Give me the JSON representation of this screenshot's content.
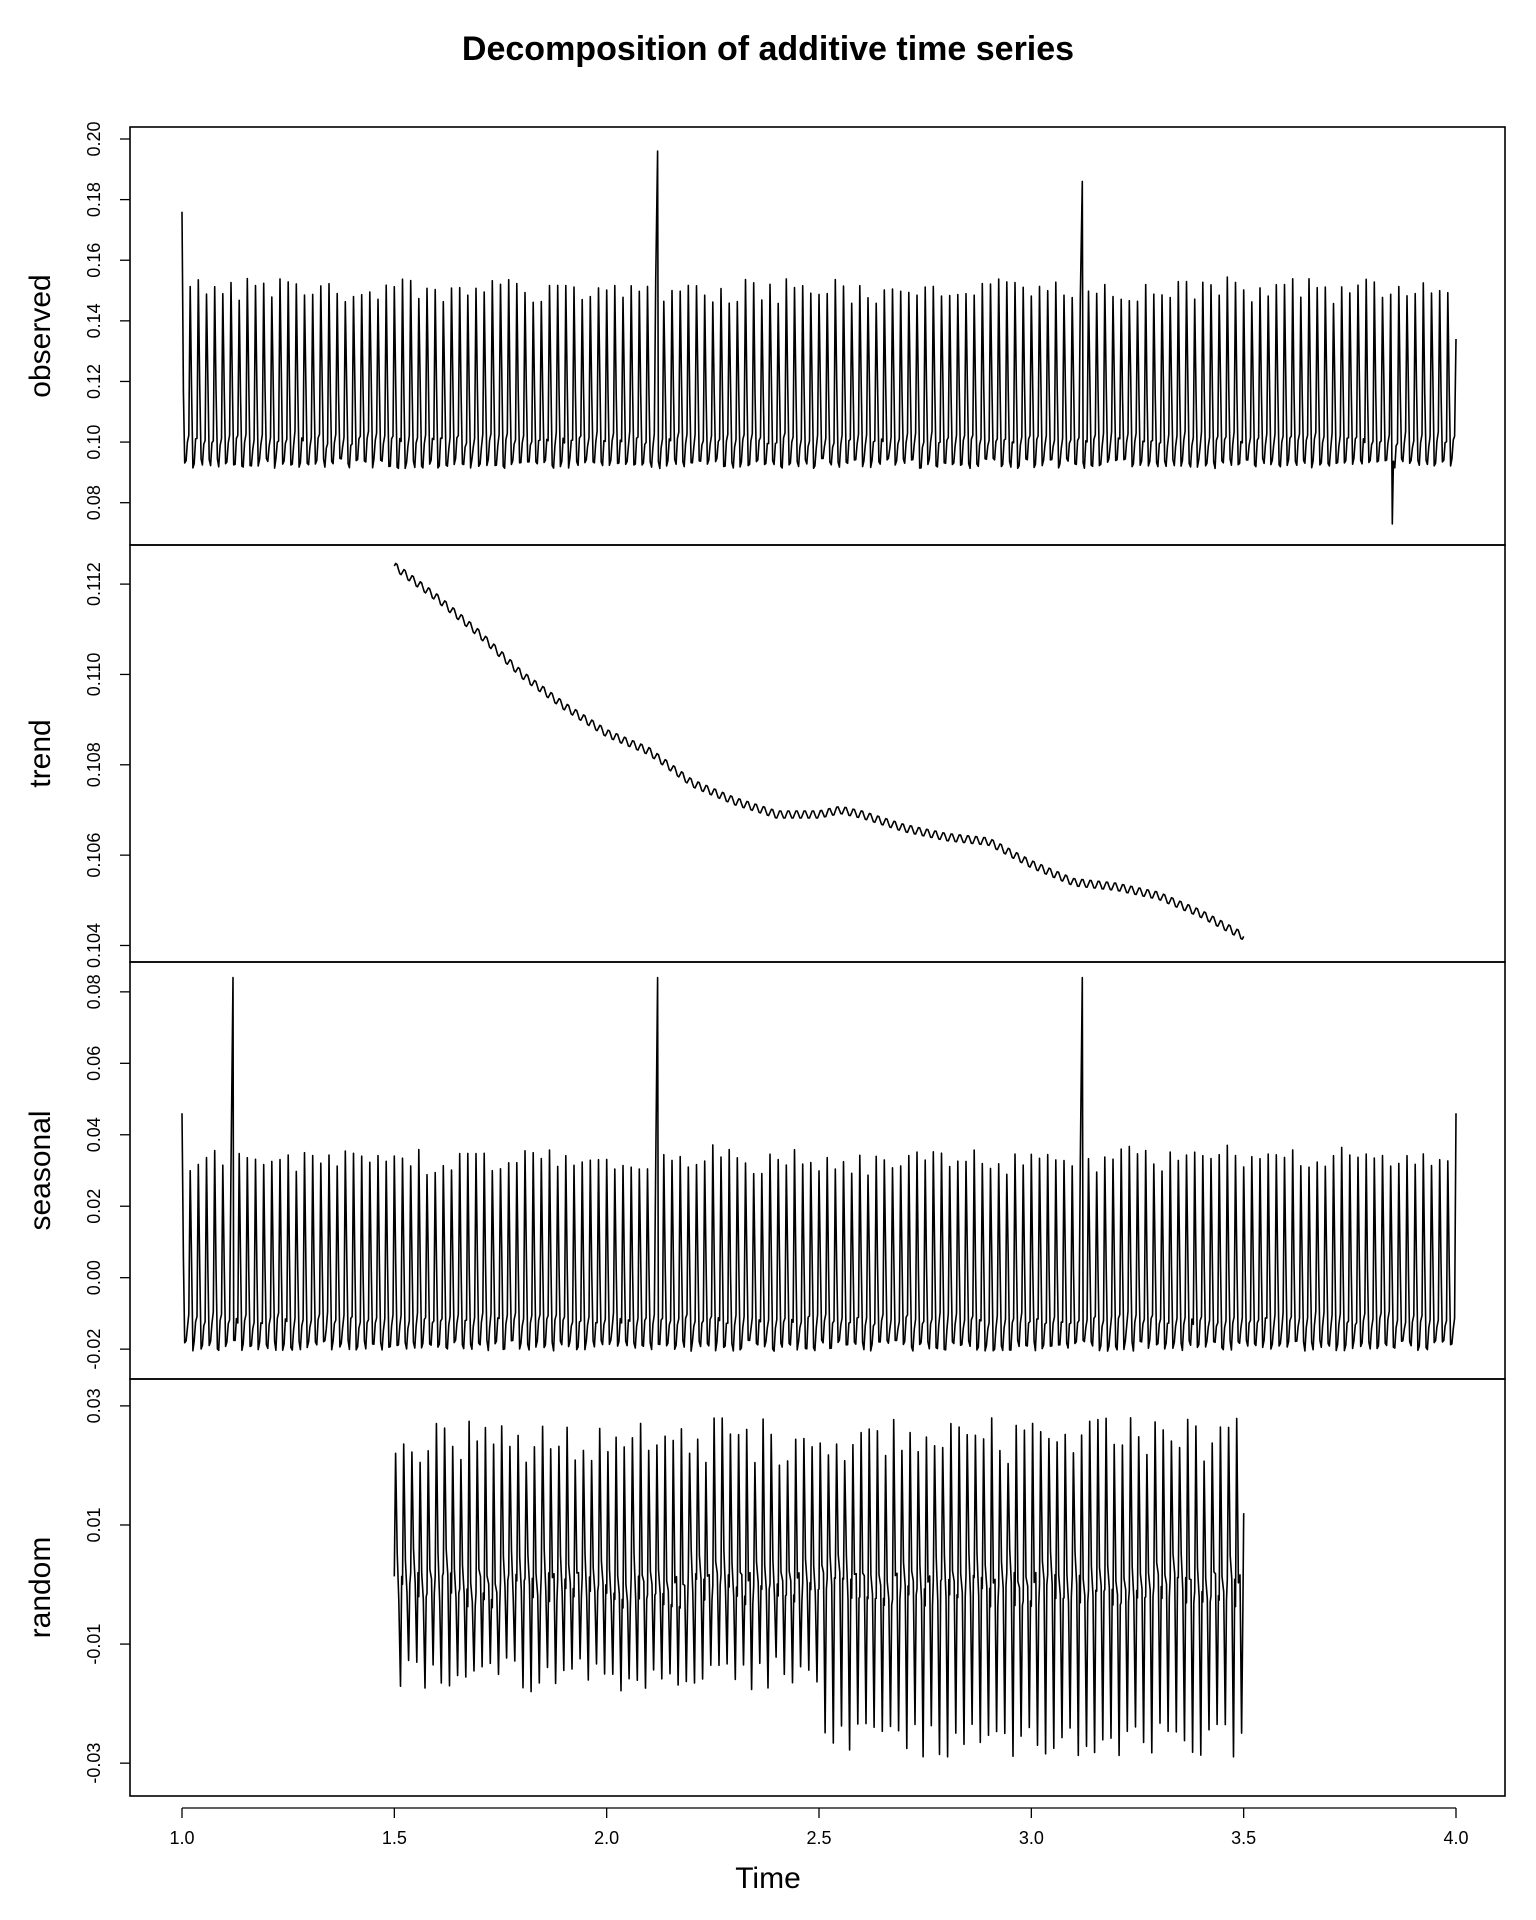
{
  "chart_data": {
    "type": "line",
    "title": "Decomposition of additive time series",
    "xlabel": "Time",
    "xlim": [
      1.0,
      4.0
    ],
    "x_ticks": [
      "1.0",
      "1.5",
      "2.0",
      "2.5",
      "3.0",
      "3.5",
      "4.0"
    ],
    "frequency_per_unit": 52,
    "grid": false,
    "line_color": "#000000",
    "panels": [
      {
        "name": "observed",
        "ylabel": "observed",
        "ylim": [
          0.07,
          0.2
        ],
        "y_ticks": [
          "0.08",
          "0.10",
          "0.12",
          "0.14",
          "0.16",
          "0.18",
          "0.20"
        ],
        "x_range": [
          1.0,
          4.0
        ],
        "typical_peak": 0.15,
        "typical_trough": 0.093,
        "spikes": [
          {
            "x": 2.12,
            "y": 0.196
          },
          {
            "x": 3.12,
            "y": 0.186
          },
          {
            "x": 1.0,
            "y": 0.176
          }
        ],
        "min_point": {
          "x": 3.85,
          "y": 0.073
        }
      },
      {
        "name": "trend",
        "ylabel": "trend",
        "ylim": [
          0.1039,
          0.1126
        ],
        "y_ticks": [
          "0.104",
          "0.106",
          "0.108",
          "0.110",
          "0.112"
        ],
        "x_range": [
          1.5,
          3.5
        ],
        "anchors": [
          {
            "x": 1.5,
            "y": 0.1124
          },
          {
            "x": 1.6,
            "y": 0.1117
          },
          {
            "x": 1.7,
            "y": 0.1109
          },
          {
            "x": 1.8,
            "y": 0.11
          },
          {
            "x": 1.9,
            "y": 0.1093
          },
          {
            "x": 2.0,
            "y": 0.1087
          },
          {
            "x": 2.1,
            "y": 0.1083
          },
          {
            "x": 2.2,
            "y": 0.1076
          },
          {
            "x": 2.3,
            "y": 0.1072
          },
          {
            "x": 2.4,
            "y": 0.1069
          },
          {
            "x": 2.5,
            "y": 0.1069
          },
          {
            "x": 2.55,
            "y": 0.107
          },
          {
            "x": 2.6,
            "y": 0.1069
          },
          {
            "x": 2.7,
            "y": 0.1066
          },
          {
            "x": 2.8,
            "y": 0.1064
          },
          {
            "x": 2.9,
            "y": 0.1063
          },
          {
            "x": 3.0,
            "y": 0.1058
          },
          {
            "x": 3.1,
            "y": 0.1054
          },
          {
            "x": 3.2,
            "y": 0.1053
          },
          {
            "x": 3.3,
            "y": 0.1051
          },
          {
            "x": 3.4,
            "y": 0.1047
          },
          {
            "x": 3.5,
            "y": 0.1042
          }
        ]
      },
      {
        "name": "seasonal",
        "ylabel": "seasonal",
        "ylim": [
          -0.025,
          0.085
        ],
        "y_ticks": [
          "-0.02",
          "0.00",
          "0.02",
          "0.04",
          "0.06",
          "0.08"
        ],
        "x_range": [
          1.0,
          4.0
        ],
        "typical_peak": 0.033,
        "typical_trough": -0.019,
        "spikes": [
          {
            "x": 1.12,
            "y": 0.084
          },
          {
            "x": 2.12,
            "y": 0.084
          },
          {
            "x": 3.12,
            "y": 0.084
          }
        ],
        "start_value": 0.046,
        "end_value": 0.046
      },
      {
        "name": "random",
        "ylabel": "random",
        "ylim": [
          -0.0335,
          0.0325
        ],
        "y_ticks": [
          "-0.03",
          "-0.01",
          "0.01",
          "0.03"
        ],
        "x_range": [
          1.5,
          3.5
        ],
        "typical_peak": 0.028,
        "typical_trough": -0.018,
        "second_half_trough": -0.029
      }
    ]
  }
}
